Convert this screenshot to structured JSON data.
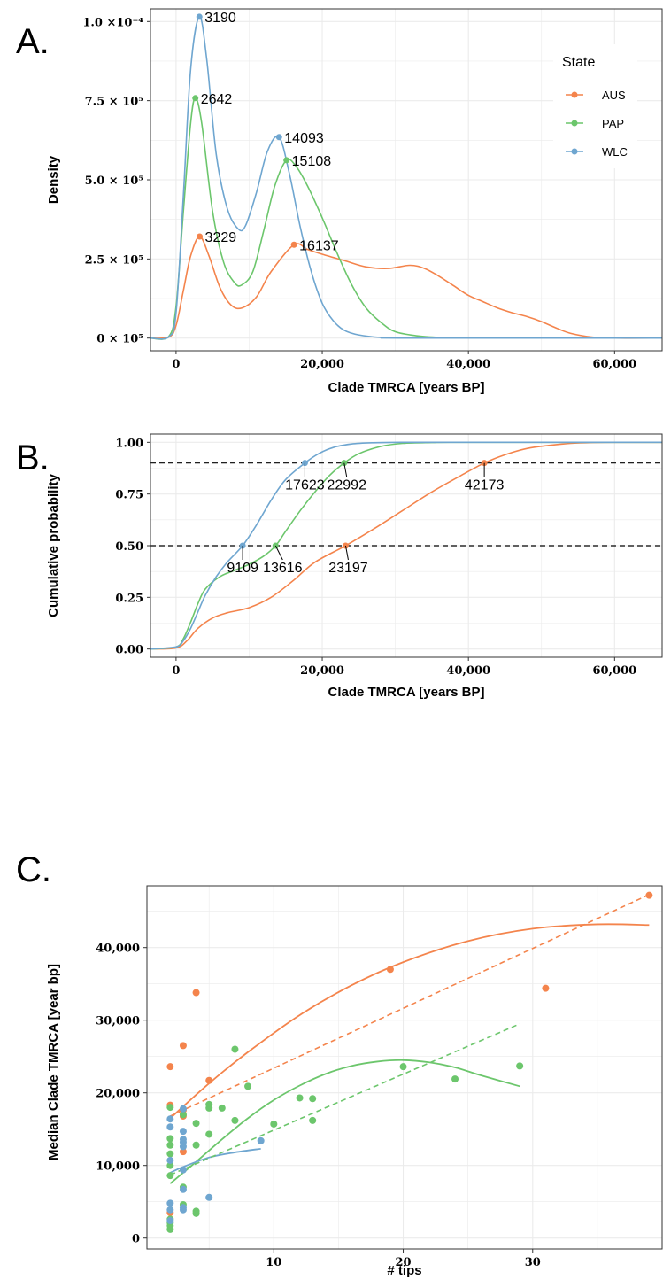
{
  "colors": {
    "AUS": "#f4844c",
    "PAP": "#6cc66c",
    "WLC": "#6fa6d0",
    "grid": "#ebebeb",
    "frame": "#333333"
  },
  "legend": {
    "title": "State",
    "entries": [
      "AUS",
      "PAP",
      "WLC"
    ]
  },
  "chart_data": [
    {
      "panel": "A.",
      "type": "line",
      "xlabel": "Clade TMRCA [years BP]",
      "ylabel": "Density",
      "xlim": [
        -3500,
        66500
      ],
      "ylim": [
        -4e-06,
        0.000104
      ],
      "x_ticks": [
        0,
        20000,
        40000,
        60000
      ],
      "x_tick_labels": [
        "0",
        "20,000",
        "40,000",
        "60,000"
      ],
      "y_ticks": [
        0,
        2.5e-05,
        5e-05,
        7.5e-05,
        0.0001
      ],
      "y_tick_labels": [
        "0 × 10⁵",
        "2.5 × 10⁵",
        "5.0 × 10⁵",
        "7.5 × 10⁵",
        "1.0 ×10⁻⁴"
      ],
      "series": [
        {
          "name": "AUS",
          "x": [
            -3500,
            -1000,
            0,
            1000,
            2000,
            3229,
            4500,
            6000,
            7500,
            9000,
            11000,
            13000,
            16137,
            18000,
            20000,
            23000,
            26000,
            29000,
            32000,
            34000,
            36000,
            38000,
            40000,
            42000,
            44000,
            46000,
            48000,
            50000,
            52000,
            54000,
            57000,
            60000,
            66500
          ],
          "y": [
            0,
            3e-07,
            4e-06,
            1.5e-05,
            2.6e-05,
            3.21e-05,
            2.6e-05,
            1.6e-05,
            1.05e-05,
            9.5e-06,
            1.3e-05,
            2.1e-05,
            2.95e-05,
            2.8e-05,
            2.65e-05,
            2.45e-05,
            2.25e-05,
            2.2e-05,
            2.3e-05,
            2.2e-05,
            1.95e-05,
            1.65e-05,
            1.35e-05,
            1.15e-05,
            9.5e-06,
            8e-06,
            6.8e-06,
            5.2e-06,
            3.2e-06,
            1.5e-06,
            3e-07,
            0,
            0
          ]
        },
        {
          "name": "PAP",
          "x": [
            -3500,
            -1000,
            0,
            1000,
            2000,
            2642,
            3500,
            5000,
            6500,
            8000,
            9000,
            10500,
            12000,
            13500,
            15108,
            16500,
            18000,
            20000,
            22000,
            24000,
            26000,
            28000,
            30000,
            33000,
            36000,
            40000,
            66500
          ],
          "y": [
            0,
            5e-07,
            1e-05,
            4e-05,
            6.8e-05,
            7.58e-05,
            6.8e-05,
            4e-05,
            2.4e-05,
            1.75e-05,
            1.68e-05,
            2.1e-05,
            3.4e-05,
            4.8e-05,
            5.62e-05,
            5.4e-05,
            4.8e-05,
            3.8e-05,
            2.7e-05,
            1.7e-05,
            9.5e-06,
            5e-06,
            2e-06,
            7e-07,
            2e-07,
            0,
            0
          ]
        },
        {
          "name": "WLC",
          "x": [
            -3500,
            -1000,
            0,
            1000,
            2000,
            3190,
            4200,
            5500,
            7000,
            8500,
            9500,
            11000,
            12500,
            14093,
            15500,
            17000,
            18500,
            20000,
            21500,
            23000,
            25000,
            28000,
            32000,
            66500
          ],
          "y": [
            0,
            4e-07,
            8e-06,
            4.5e-05,
            8.5e-05,
            0.0001015,
            8.8e-05,
            5.8e-05,
            4.1e-05,
            3.45e-05,
            3.55e-05,
            4.6e-05,
            5.9e-05,
            6.35e-05,
            5.2e-05,
            3.5e-05,
            2.1e-05,
            1.1e-05,
            5.5e-06,
            2.5e-06,
            1e-06,
            2e-07,
            0,
            0
          ]
        }
      ],
      "peaks": [
        {
          "series": "WLC",
          "x": 3190,
          "y": 0.0001015,
          "label": "3190"
        },
        {
          "series": "PAP",
          "x": 2642,
          "y": 7.58e-05,
          "label": "2642"
        },
        {
          "series": "WLC",
          "x": 14093,
          "y": 6.35e-05,
          "label": "14093"
        },
        {
          "series": "PAP",
          "x": 15108,
          "y": 5.62e-05,
          "label": "15108"
        },
        {
          "series": "AUS",
          "x": 3229,
          "y": 3.21e-05,
          "label": "3229"
        },
        {
          "series": "AUS",
          "x": 16137,
          "y": 2.95e-05,
          "label": "16137"
        }
      ],
      "legend_position": "top-right"
    },
    {
      "panel": "B.",
      "type": "line",
      "xlabel": "Clade TMRCA [years BP]",
      "ylabel": "Cumulative probability",
      "xlim": [
        -3500,
        66500
      ],
      "ylim": [
        -0.04,
        1.04
      ],
      "x_ticks": [
        0,
        20000,
        40000,
        60000
      ],
      "x_tick_labels": [
        "0",
        "20,000",
        "40,000",
        "60,000"
      ],
      "y_ticks": [
        0,
        0.25,
        0.5,
        0.75,
        1.0
      ],
      "y_tick_labels": [
        "0.00",
        "0.25",
        "0.50",
        "0.75",
        "1.00"
      ],
      "hlines": [
        0.5,
        0.9
      ],
      "series": [
        {
          "name": "AUS",
          "x": [
            -3500,
            0,
            1500,
            3000,
            5000,
            7000,
            10000,
            13000,
            16000,
            19000,
            23197,
            27000,
            31000,
            35000,
            39000,
            42173,
            45000,
            48000,
            51000,
            54000,
            57000,
            60000,
            66500
          ],
          "y": [
            0,
            0.005,
            0.04,
            0.1,
            0.15,
            0.175,
            0.2,
            0.25,
            0.33,
            0.42,
            0.5,
            0.58,
            0.67,
            0.76,
            0.84,
            0.9,
            0.94,
            0.97,
            0.985,
            0.995,
            0.999,
            1.0,
            1.0
          ]
        },
        {
          "name": "PAP",
          "x": [
            -3500,
            0,
            1000,
            2000,
            3000,
            4000,
            6000,
            8000,
            10000,
            12000,
            13616,
            15000,
            17000,
            19000,
            21000,
            22992,
            25000,
            28000,
            31000,
            35000,
            40000,
            66500
          ],
          "y": [
            0,
            0.01,
            0.05,
            0.13,
            0.22,
            0.29,
            0.35,
            0.38,
            0.41,
            0.45,
            0.5,
            0.57,
            0.67,
            0.76,
            0.84,
            0.9,
            0.945,
            0.98,
            0.995,
            0.999,
            1.0,
            1.0
          ]
        },
        {
          "name": "WLC",
          "x": [
            -3500,
            0,
            1000,
            2000,
            3000,
            4000,
            5500,
            7000,
            9109,
            11000,
            13000,
            15000,
            17623,
            19500,
            21500,
            24000,
            27000,
            31000,
            35000,
            66500
          ],
          "y": [
            0,
            0.01,
            0.04,
            0.1,
            0.18,
            0.26,
            0.35,
            0.42,
            0.5,
            0.6,
            0.72,
            0.82,
            0.9,
            0.945,
            0.975,
            0.992,
            0.998,
            1.0,
            1.0,
            1.0
          ]
        }
      ],
      "markers": [
        {
          "series": "WLC",
          "x": 17623,
          "y": 0.9,
          "label": "17623"
        },
        {
          "series": "PAP",
          "x": 22992,
          "y": 0.9,
          "label": "22992"
        },
        {
          "series": "AUS",
          "x": 42173,
          "y": 0.9,
          "label": "42173"
        },
        {
          "series": "WLC",
          "x": 9109,
          "y": 0.5,
          "label": "9109"
        },
        {
          "series": "PAP",
          "x": 13616,
          "y": 0.5,
          "label": "13616"
        },
        {
          "series": "AUS",
          "x": 23197,
          "y": 0.5,
          "label": "23197"
        }
      ]
    },
    {
      "panel": "C.",
      "type": "scatter",
      "xlabel": "# tips",
      "ylabel": "Median Clade TMRCA [year bp]",
      "xlim": [
        0.2,
        40.0
      ],
      "ylim": [
        -1500,
        48500
      ],
      "x_ticks": [
        10,
        20,
        30
      ],
      "x_tick_labels": [
        "10",
        "20",
        "30"
      ],
      "y_ticks": [
        0,
        10000,
        20000,
        30000,
        40000
      ],
      "y_tick_labels": [
        "0",
        "10,000",
        "20,000",
        "30,000",
        "40,000"
      ],
      "series": [
        {
          "name": "AUS",
          "x": [
            2,
            2,
            2,
            3,
            3,
            3,
            3,
            4,
            5,
            19,
            31,
            39
          ],
          "y": [
            23600,
            18300,
            3500,
            26500,
            17600,
            16800,
            11900,
            33800,
            21700,
            37000,
            34400,
            47200
          ]
        },
        {
          "name": "PAP",
          "x": [
            2,
            2,
            2,
            2,
            2,
            2,
            2,
            2,
            2,
            2,
            3,
            3,
            3,
            4,
            4,
            4,
            4,
            5,
            5,
            5,
            6,
            7,
            7,
            8,
            10,
            12,
            13,
            13,
            20,
            24,
            29
          ],
          "y": [
            13700,
            12800,
            11600,
            10000,
            8600,
            2600,
            2100,
            1700,
            1200,
            18000,
            17000,
            7000,
            4600,
            15800,
            12800,
            3700,
            3400,
            18400,
            17900,
            14300,
            17900,
            26000,
            16200,
            20900,
            15700,
            19300,
            19200,
            16200,
            23600,
            21900,
            23700
          ]
        },
        {
          "name": "WLC",
          "x": [
            2,
            2,
            2,
            2,
            2,
            2,
            3,
            3,
            3,
            3,
            3,
            3,
            3,
            3,
            3,
            5,
            9
          ],
          "y": [
            16400,
            15300,
            10700,
            4800,
            3900,
            2400,
            17800,
            14700,
            13600,
            13200,
            12600,
            9400,
            6700,
            4200,
            3900,
            5600,
            13400
          ]
        }
      ],
      "loess_fits": [
        {
          "series": "AUS",
          "x": [
            2,
            5,
            8,
            12,
            16,
            20,
            25,
            30,
            35,
            39
          ],
          "y": [
            16500,
            21300,
            25600,
            30700,
            34800,
            38000,
            40900,
            42600,
            43200,
            43100
          ]
        },
        {
          "series": "PAP",
          "x": [
            2,
            4,
            6,
            8,
            10,
            12,
            14,
            16,
            18,
            20,
            22,
            24,
            26,
            29
          ],
          "y": [
            7500,
            10500,
            13600,
            16500,
            19000,
            21000,
            22600,
            23700,
            24300,
            24500,
            24200,
            23500,
            22400,
            20900
          ]
        },
        {
          "series": "WLC",
          "x": [
            2,
            3,
            5,
            7,
            9
          ],
          "y": [
            9000,
            9800,
            11100,
            11800,
            12300
          ]
        }
      ],
      "linear_fits": [
        {
          "series": "AUS",
          "x": [
            2,
            39
          ],
          "y": [
            16800,
            47300
          ]
        },
        {
          "series": "PAP",
          "x": [
            2,
            29
          ],
          "y": [
            8700,
            29500
          ]
        }
      ]
    }
  ]
}
